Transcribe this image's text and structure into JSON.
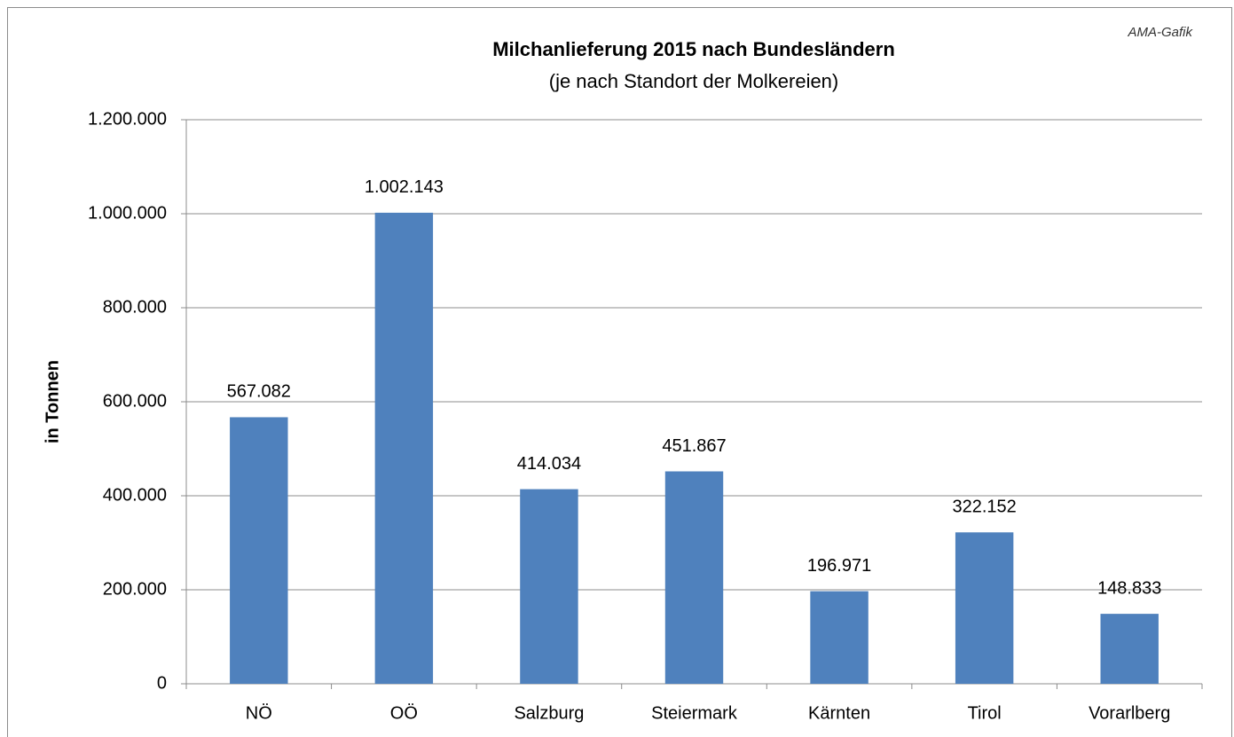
{
  "chart_data": {
    "type": "bar",
    "title": "Milchanlieferung 2015 nach Bundesländern",
    "subtitle": "(je nach Standort der Molkereien)",
    "annotation": "AMA-Gafik",
    "y_label": "in Tonnen",
    "categories": [
      "NÖ",
      "OÖ",
      "Salzburg",
      "Steiermark",
      "Kärnten",
      "Tirol",
      "Vorarlberg"
    ],
    "values": [
      567082,
      1002143,
      414034,
      451867,
      196971,
      322152,
      148833
    ],
    "value_labels": [
      "567.082",
      "1.002.143",
      "414.034",
      "451.867",
      "196.971",
      "322.152",
      "148.833"
    ],
    "color": "#4f81bd",
    "ylim": [
      0,
      1200000
    ],
    "yticks": [
      0,
      {
        "value": 200000,
        "label": "200.000"
      },
      {
        "value": 400000,
        "label": "400.000"
      },
      {
        "value": 600000,
        "label": "600.000"
      },
      {
        "value": 800000,
        "label": "800.000"
      },
      {
        "value": 1000000,
        "label": "1.000.000"
      },
      {
        "value": 1200000,
        "label": "1.200.000"
      }
    ],
    "grid": true
  }
}
